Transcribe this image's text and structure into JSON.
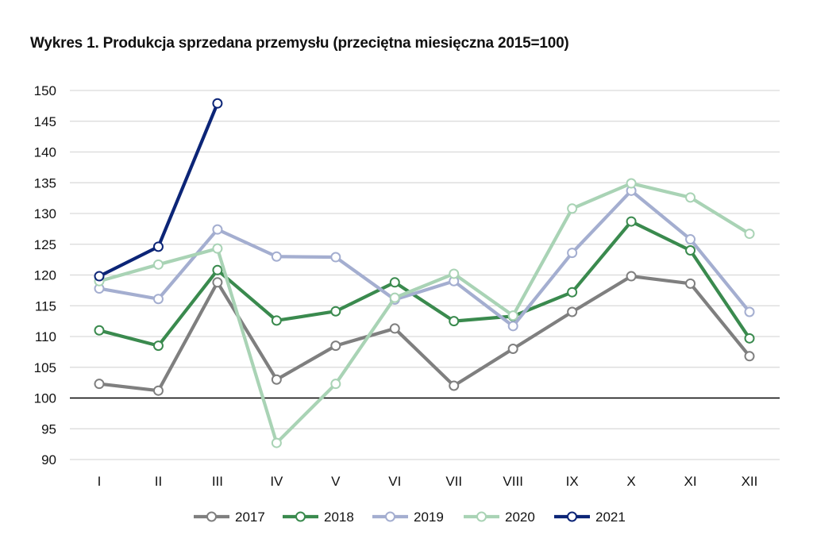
{
  "chart_data": {
    "type": "line",
    "title": "Wykres 1. Produkcja sprzedana przemysłu (przeciętna miesięczna 2015=100)",
    "xlabel": "",
    "ylabel": "",
    "categories": [
      "I",
      "II",
      "III",
      "IV",
      "V",
      "VI",
      "VII",
      "VIII",
      "IX",
      "X",
      "XI",
      "XII"
    ],
    "ylim": [
      90,
      150
    ],
    "yticks": [
      90,
      95,
      100,
      105,
      110,
      115,
      120,
      125,
      130,
      135,
      140,
      145,
      150
    ],
    "grid": true,
    "reference_line": 100,
    "legend_position": "bottom",
    "series": [
      {
        "name": "2017",
        "color": "#7f7f7f",
        "values": [
          102.3,
          101.2,
          118.8,
          103.0,
          108.5,
          111.3,
          102.0,
          108.0,
          114.0,
          119.8,
          118.6,
          106.8
        ]
      },
      {
        "name": "2018",
        "color": "#3a8a4e",
        "values": [
          111.0,
          108.5,
          120.8,
          112.6,
          114.1,
          118.8,
          112.5,
          113.3,
          117.2,
          128.7,
          124.0,
          109.7
        ]
      },
      {
        "name": "2019",
        "color": "#a4aed0",
        "values": [
          117.8,
          116.1,
          127.4,
          123.0,
          122.9,
          116.0,
          119.0,
          111.7,
          123.6,
          133.7,
          125.8,
          114.0
        ]
      },
      {
        "name": "2020",
        "color": "#a9d3b5",
        "values": [
          119.0,
          121.7,
          124.3,
          92.7,
          102.3,
          116.3,
          120.2,
          113.4,
          130.8,
          134.9,
          132.6,
          126.7
        ]
      },
      {
        "name": "2021",
        "color": "#0c2577",
        "values": [
          119.8,
          124.6,
          147.9,
          null,
          null,
          null,
          null,
          null,
          null,
          null,
          null,
          null
        ]
      }
    ]
  }
}
